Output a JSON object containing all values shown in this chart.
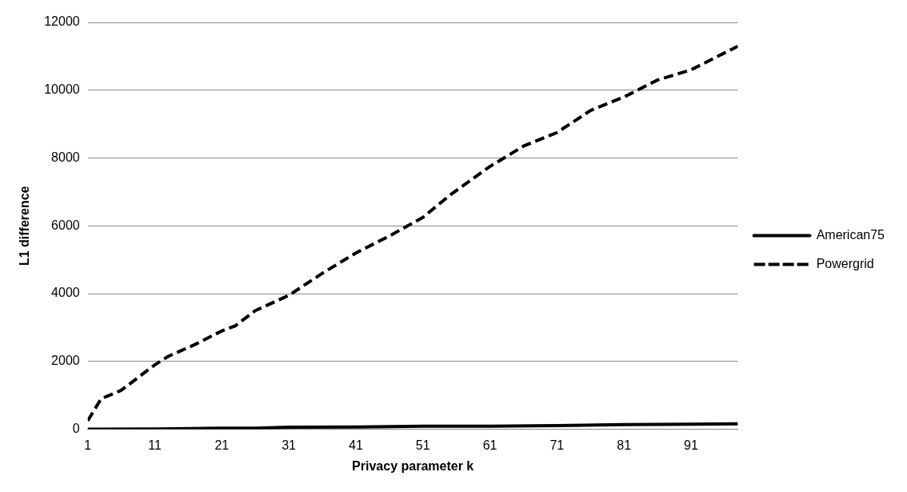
{
  "chart_data": {
    "type": "line",
    "xlabel": "Privacy parameter k",
    "ylabel": "L1 difference",
    "xlim": [
      1,
      98
    ],
    "xticks": [
      1,
      11,
      21,
      31,
      41,
      51,
      61,
      71,
      81,
      91
    ],
    "ylim": [
      0,
      12000
    ],
    "yticks": [
      0,
      2000,
      4000,
      6000,
      8000,
      10000,
      12000
    ],
    "grid": "y",
    "legend": "right",
    "marker": "none",
    "series": [
      {
        "name": "American75",
        "color": "#000000",
        "line_style": "solid",
        "x": [
          1,
          11,
          21,
          26,
          31,
          41,
          51,
          61,
          71,
          81,
          91,
          98
        ],
        "values": [
          0,
          10,
          30,
          30,
          60,
          70,
          90,
          90,
          110,
          140,
          150,
          160
        ]
      },
      {
        "name": "Powergrid",
        "color": "#000000",
        "line_style": "dashed",
        "x": [
          1,
          3,
          6,
          11,
          13,
          17,
          21,
          23,
          26,
          31,
          36,
          41,
          46,
          51,
          55,
          61,
          66,
          71,
          76,
          81,
          86,
          91,
          98
        ],
        "values": [
          250,
          900,
          1150,
          1900,
          2150,
          2500,
          2900,
          3050,
          3500,
          3950,
          4600,
          5200,
          5700,
          6250,
          6900,
          7750,
          8350,
          8750,
          9400,
          9800,
          10300,
          10600,
          11300
        ]
      }
    ]
  }
}
